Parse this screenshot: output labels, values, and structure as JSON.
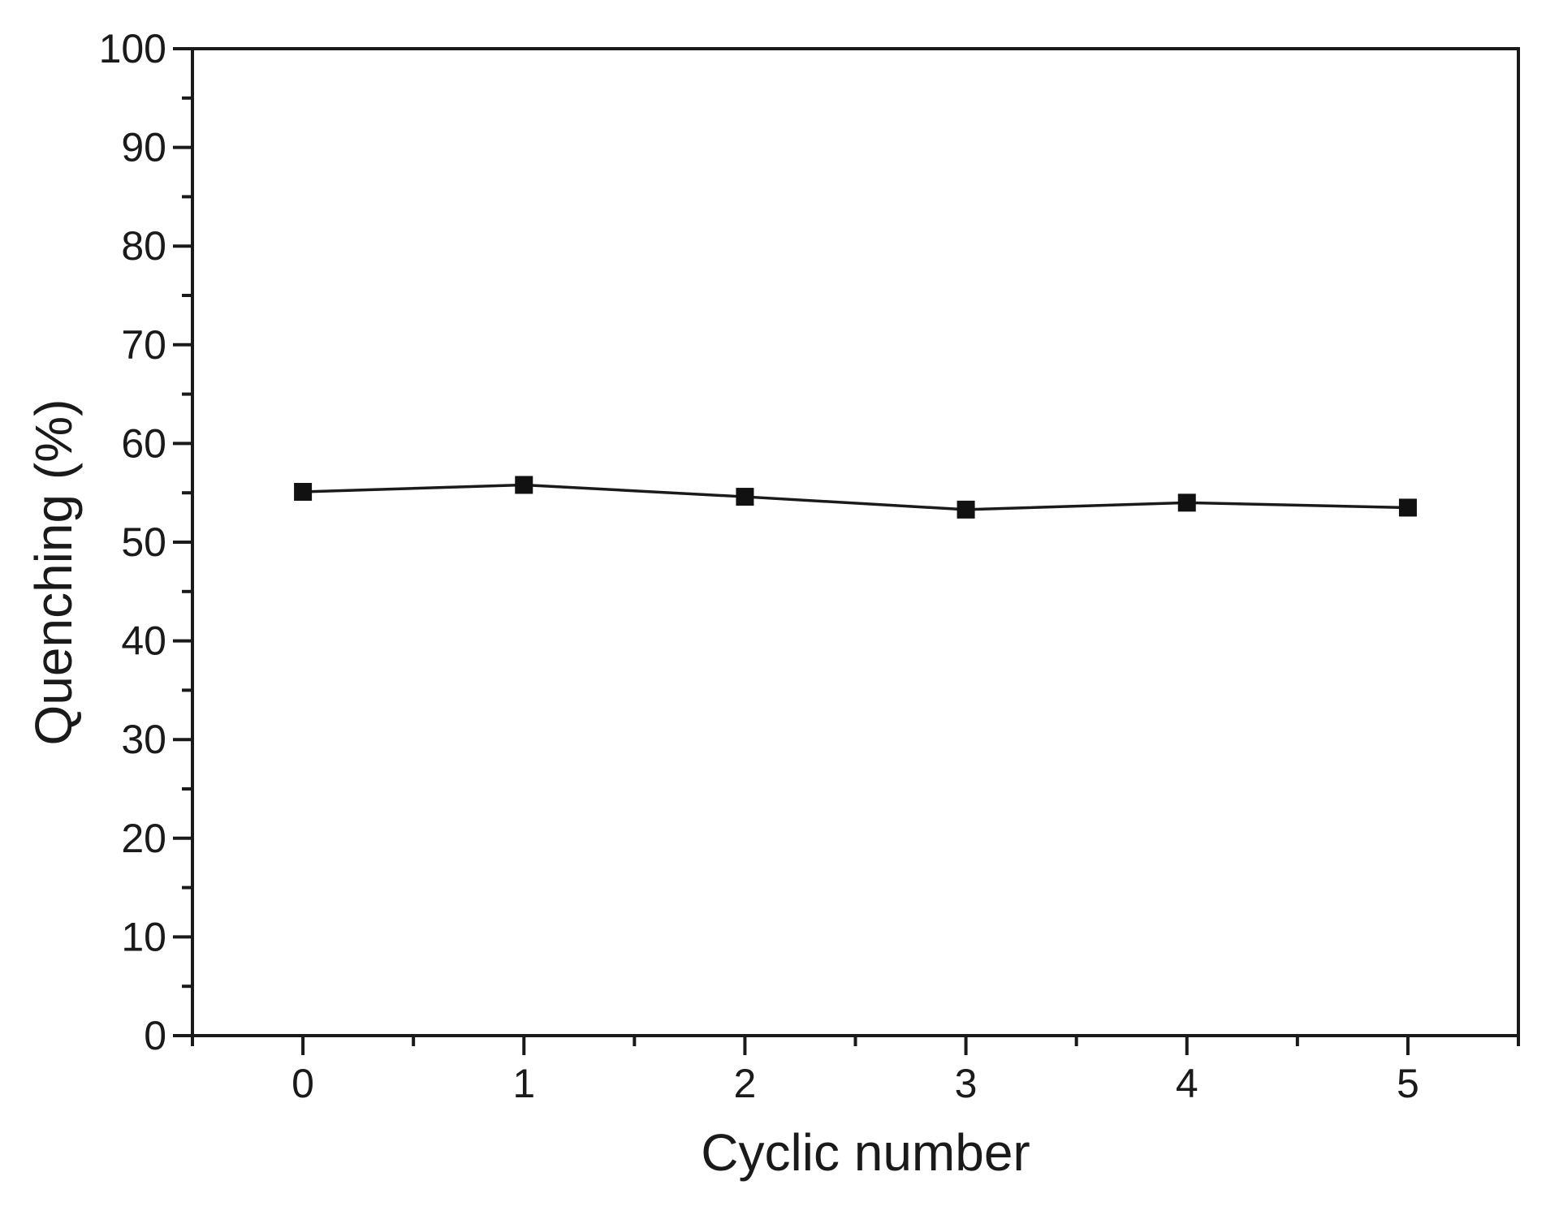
{
  "chart_data": {
    "type": "line",
    "title": "",
    "xlabel": "Cyclic number",
    "ylabel": "Quenching (%)",
    "x": [
      0,
      1,
      2,
      3,
      4,
      5
    ],
    "series": [
      {
        "name": "Quenching",
        "values": [
          55.1,
          55.8,
          54.6,
          53.3,
          54.0,
          53.5
        ]
      }
    ],
    "xlim": [
      -0.5,
      5.5
    ],
    "ylim": [
      0,
      100
    ],
    "x_major_ticks": [
      0,
      1,
      2,
      3,
      4,
      5
    ],
    "x_tick_labels": [
      "0",
      "1",
      "2",
      "3",
      "4",
      "5"
    ],
    "y_major_ticks": [
      0,
      10,
      20,
      30,
      40,
      50,
      60,
      70,
      80,
      90,
      100
    ],
    "x_minor_step": 0.5,
    "y_major_step": 10,
    "y_minor_step": 5,
    "grid": false,
    "legend": false,
    "marker": "square",
    "axis_color": "#1a1a1a",
    "text_color": "#1a1a1a",
    "line_color": "#1a1a1a",
    "marker_color": "#111111",
    "background": "#ffffff"
  }
}
